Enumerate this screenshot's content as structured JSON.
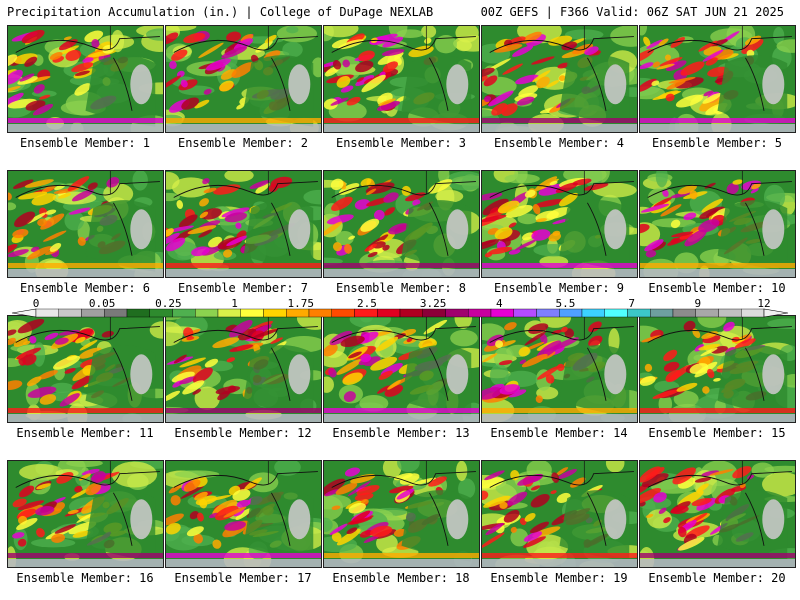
{
  "header": {
    "title": "Precipitation Accumulation (in.) | College of DuPage NEXLAB",
    "run_info": "00Z GEFS | F366 Valid: 06Z SAT JUN 21 2025"
  },
  "colorbar": {
    "tick_labels": [
      "0",
      "0.05",
      "0.25",
      "1",
      "1.75",
      "2.5",
      "3.25",
      "4",
      "5.5",
      "7",
      "9",
      "12"
    ],
    "colors": [
      "#e8e8e8",
      "#c8c8c8",
      "#a0a0a0",
      "#7a7a7a",
      "#1f6e1f",
      "#2e8b2e",
      "#4fb04f",
      "#8cd24f",
      "#d8f04a",
      "#ffff3c",
      "#ffd400",
      "#ffaa00",
      "#ff7f00",
      "#ff4a00",
      "#ff1a1a",
      "#e00020",
      "#b00020",
      "#8c0038",
      "#a0006e",
      "#c8009e",
      "#e600d2",
      "#b44cff",
      "#7f7fff",
      "#4fa0ff",
      "#3cd2ff",
      "#50ffff",
      "#3cc8c8",
      "#6ea0a0",
      "#8c8c8c",
      "#a8a8a8",
      "#c0c0c0",
      "#dcdcdc"
    ]
  },
  "members": [
    {
      "label": "Ensemble Member: 1"
    },
    {
      "label": "Ensemble Member: 2"
    },
    {
      "label": "Ensemble Member: 3"
    },
    {
      "label": "Ensemble Member: 4"
    },
    {
      "label": "Ensemble Member: 5"
    },
    {
      "label": "Ensemble Member: 6"
    },
    {
      "label": "Ensemble Member: 7"
    },
    {
      "label": "Ensemble Member: 8"
    },
    {
      "label": "Ensemble Member: 9"
    },
    {
      "label": "Ensemble Member: 10"
    },
    {
      "label": "Ensemble Member: 11"
    },
    {
      "label": "Ensemble Member: 12"
    },
    {
      "label": "Ensemble Member: 13"
    },
    {
      "label": "Ensemble Member: 14"
    },
    {
      "label": "Ensemble Member: 15"
    },
    {
      "label": "Ensemble Member: 16"
    },
    {
      "label": "Ensemble Member: 17"
    },
    {
      "label": "Ensemble Member: 18"
    },
    {
      "label": "Ensemble Member: 19"
    },
    {
      "label": "Ensemble Member: 20"
    }
  ]
}
